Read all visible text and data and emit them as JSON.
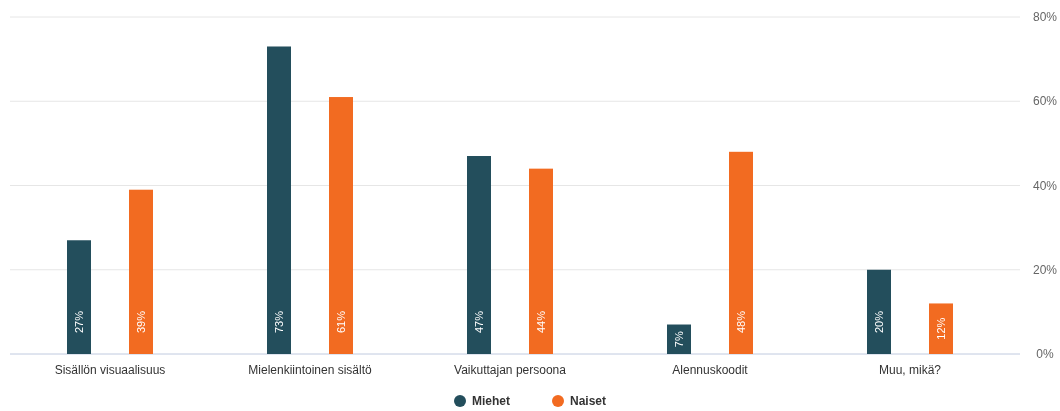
{
  "chart_data": {
    "type": "bar",
    "categories": [
      "Sisällön visuaalisuus",
      "Mielenkiintoinen sisältö",
      "Vaikuttajan persoona",
      "Alennuskoodit",
      "Muu, mikä?"
    ],
    "series": [
      {
        "name": "Miehet",
        "color": "#234e5c",
        "values": [
          27,
          73,
          47,
          7,
          20
        ],
        "value_labels": [
          "27%",
          "73%",
          "47%",
          "7%",
          "20%"
        ]
      },
      {
        "name": "Naiset",
        "color": "#f26b21",
        "values": [
          39,
          61,
          44,
          48,
          12
        ],
        "value_labels": [
          "39%",
          "61%",
          "44%",
          "48%",
          "12%"
        ]
      }
    ],
    "ylim": [
      0,
      80
    ],
    "yticks": [
      {
        "value": 0,
        "label": "0%"
      },
      {
        "value": 20,
        "label": "20%"
      },
      {
        "value": 40,
        "label": "40%"
      },
      {
        "value": 60,
        "label": "60%"
      },
      {
        "value": 80,
        "label": "80%"
      }
    ],
    "grid": "y",
    "legend": "bottom"
  }
}
